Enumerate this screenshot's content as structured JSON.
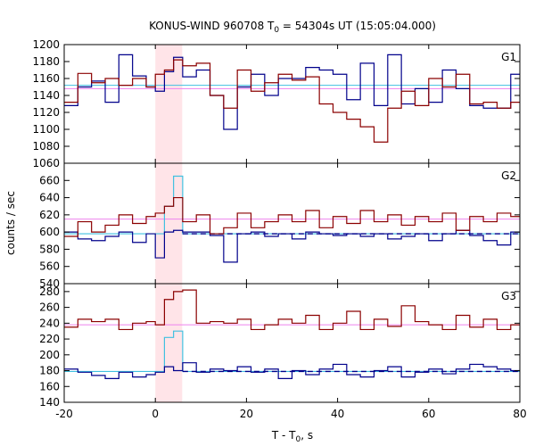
{
  "chart_data": {
    "type": "line",
    "title_main": "KONUS-WIND 960708 T",
    "title_sub": "0",
    "title_rest": " = 54304s UT (15:05:04.000)",
    "xlabel_main": "T - T",
    "xlabel_sub": "0",
    "xlabel_rest": ", s",
    "ylabel": "counts / sec",
    "xlim": [
      -20,
      80
    ],
    "x_ticks": [
      -20,
      0,
      20,
      40,
      60,
      80
    ],
    "highlight": [
      0,
      5.9
    ],
    "colors": {
      "red": "#8b0000",
      "blue": "#00008b",
      "pink": "#ee82ee",
      "cyan": "#40c0e0",
      "highlight": "#ffe4e8"
    },
    "bin_edges": [
      -20,
      -17,
      -14,
      -11,
      -8,
      -5,
      -2,
      0,
      2,
      4,
      6,
      9,
      12,
      15,
      18,
      21,
      24,
      27,
      30,
      33,
      36,
      39,
      42,
      45,
      48,
      51,
      54,
      57,
      60,
      63,
      66,
      69,
      72,
      75,
      78,
      80
    ],
    "panels": [
      {
        "name": "G1",
        "ylim": [
          1060,
          1200
        ],
        "y_ticks": [
          1060,
          1080,
          1100,
          1120,
          1140,
          1160,
          1180,
          1200
        ],
        "red": [
          1132,
          1166,
          1155,
          1160,
          1152,
          1160,
          1150,
          1165,
          1170,
          1182,
          1175,
          1178,
          1140,
          1125,
          1170,
          1145,
          1155,
          1165,
          1158,
          1162,
          1130,
          1120,
          1112,
          1103,
          1085,
          1125,
          1145,
          1128,
          1160,
          1150,
          1165,
          1130,
          1132,
          1125,
          1132
        ],
        "blue": [
          1128,
          1150,
          1157,
          1132,
          1188,
          1163,
          1150,
          1145,
          1168,
          1185,
          1162,
          1170,
          1140,
          1100,
          1150,
          1165,
          1140,
          1160,
          1160,
          1173,
          1170,
          1165,
          1135,
          1178,
          1128,
          1188,
          1130,
          1148,
          1132,
          1170,
          1148,
          1128,
          1125,
          1125,
          1165
        ],
        "pink_level": 1148,
        "cyan_level": 1152
      },
      {
        "name": "G2",
        "ylim": [
          540,
          680
        ],
        "y_ticks": [
          540,
          560,
          580,
          600,
          620,
          640,
          660
        ],
        "red": [
          595,
          612,
          600,
          608,
          620,
          610,
          618,
          622,
          630,
          640,
          612,
          620,
          598,
          605,
          622,
          605,
          612,
          620,
          612,
          625,
          605,
          618,
          610,
          625,
          612,
          620,
          608,
          618,
          612,
          622,
          602,
          618,
          612,
          622,
          618
        ],
        "blue": [
          600,
          592,
          590,
          595,
          600,
          588,
          598,
          570,
          600,
          602,
          600,
          600,
          596,
          565,
          598,
          600,
          595,
          598,
          592,
          600,
          598,
          596,
          598,
          595,
          598,
          592,
          595,
          598,
          590,
          598,
          602,
          596,
          590,
          585,
          600
        ],
        "cyan_steps": [
          [
            -20,
            0,
            598
          ],
          [
            0,
            2,
            598
          ],
          [
            2,
            4,
            630
          ],
          [
            4,
            6,
            665
          ],
          [
            6,
            80,
            598
          ]
        ],
        "pink_level": 615,
        "blue_dash_level": 598
      },
      {
        "name": "G3",
        "ylim": [
          140,
          290
        ],
        "y_ticks": [
          140,
          160,
          180,
          200,
          220,
          240,
          260,
          280
        ],
        "red": [
          235,
          245,
          242,
          245,
          232,
          240,
          242,
          238,
          270,
          280,
          282,
          240,
          242,
          240,
          245,
          232,
          238,
          245,
          240,
          250,
          232,
          240,
          255,
          232,
          245,
          236,
          262,
          242,
          238,
          232,
          250,
          235,
          245,
          232,
          238
        ],
        "blue": [
          182,
          178,
          174,
          170,
          178,
          172,
          175,
          178,
          185,
          180,
          190,
          178,
          182,
          180,
          185,
          178,
          182,
          170,
          180,
          175,
          182,
          188,
          175,
          172,
          180,
          185,
          172,
          178,
          182,
          176,
          182,
          188,
          185,
          182,
          180
        ],
        "cyan_steps": [
          [
            -20,
            0,
            179
          ],
          [
            0,
            2,
            179
          ],
          [
            2,
            4,
            222
          ],
          [
            4,
            6,
            230
          ],
          [
            6,
            80,
            179
          ]
        ],
        "pink_level": 238,
        "blue_dash_level": 179
      }
    ]
  }
}
